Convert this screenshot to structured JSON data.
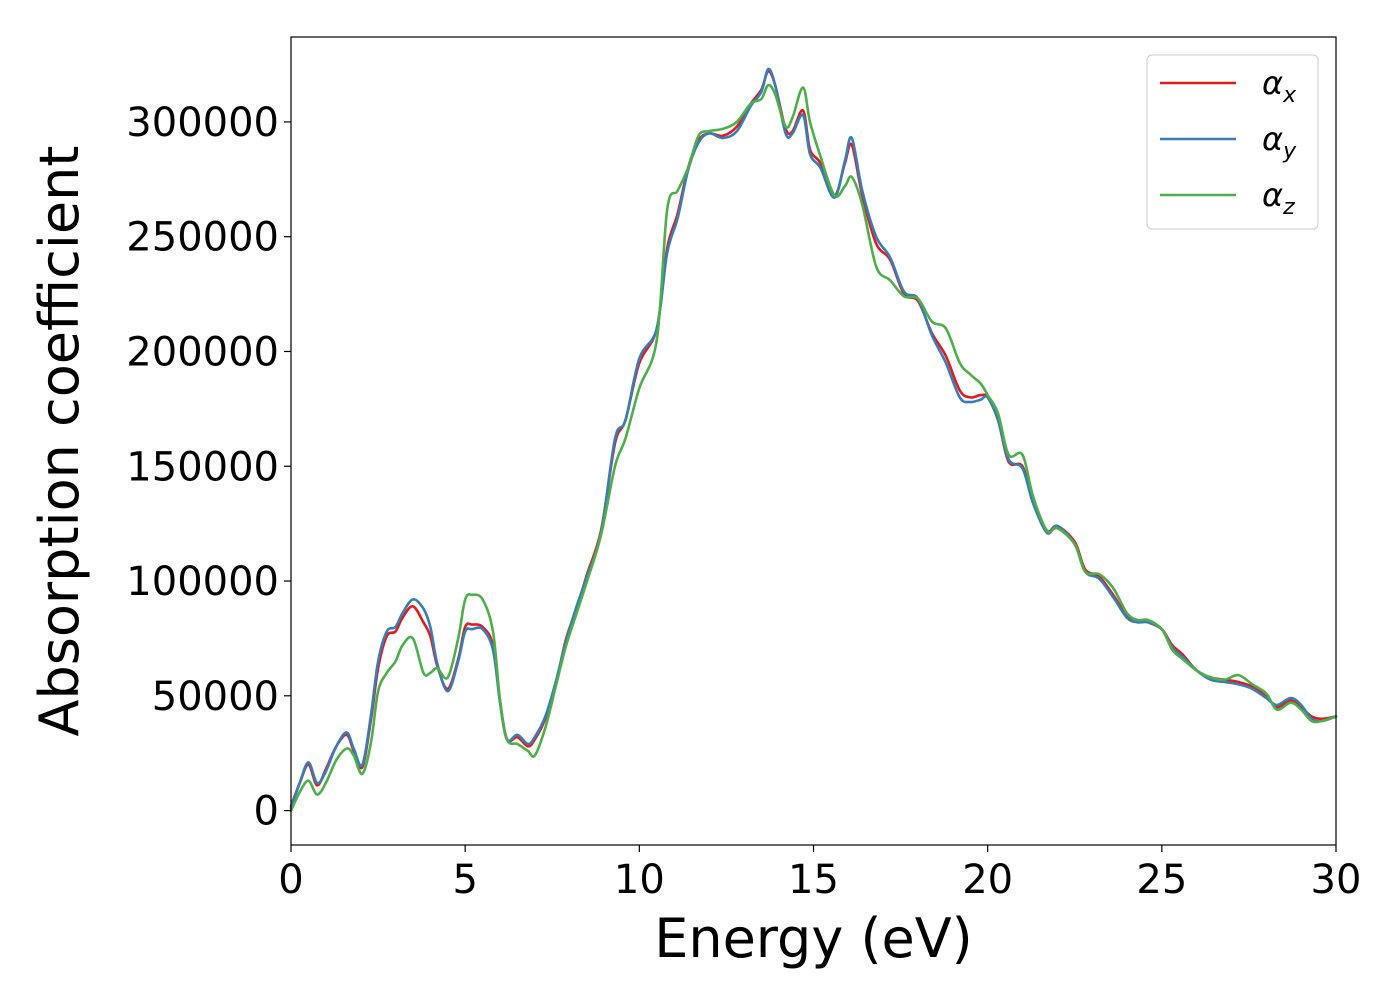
{
  "chart_data": {
    "type": "line",
    "title": "",
    "xlabel": "Energy (eV)",
    "ylabel": "Absorption coefficient",
    "xlim": [
      0,
      30
    ],
    "ylim": [
      -15000,
      337000
    ],
    "xticks": [
      0,
      5,
      10,
      15,
      20,
      25,
      30
    ],
    "yticks": [
      0,
      50000,
      100000,
      150000,
      200000,
      250000,
      300000
    ],
    "grid": false,
    "legend_position": "top-right",
    "colors": {
      "x": "#e41a1c",
      "y": "#377eb8",
      "z": "#4daf4a"
    },
    "series": [
      {
        "name": "αx",
        "symbol": "α",
        "subscript": "x",
        "color": "#e41a1c",
        "x": [
          0,
          0.25,
          0.5,
          0.75,
          1.0,
          1.3,
          1.6,
          1.8,
          2.05,
          2.3,
          2.5,
          2.75,
          3.0,
          3.2,
          3.5,
          3.8,
          4.0,
          4.2,
          4.5,
          4.8,
          5.0,
          5.2,
          5.5,
          5.8,
          6.0,
          6.2,
          6.5,
          6.8,
          7.0,
          7.3,
          7.6,
          7.9,
          8.2,
          8.5,
          8.9,
          9.3,
          9.6,
          10.0,
          10.5,
          10.8,
          11.1,
          11.4,
          11.7,
          12.0,
          12.4,
          12.8,
          13.2,
          13.5,
          13.7,
          13.9,
          14.2,
          14.4,
          14.7,
          14.9,
          15.2,
          15.6,
          15.9,
          16.1,
          16.4,
          16.8,
          17.2,
          17.6,
          18.0,
          18.4,
          18.8,
          19.2,
          19.5,
          19.8,
          20.0,
          20.3,
          20.6,
          21.0,
          21.3,
          21.7,
          22.0,
          22.5,
          22.8,
          23.2,
          23.6,
          24.0,
          24.3,
          24.6,
          25.0,
          25.3,
          25.6,
          26.0,
          26.4,
          26.8,
          27.2,
          27.6,
          28.0,
          28.3,
          28.7,
          29.0,
          29.3,
          29.6,
          30.0
        ],
        "y": [
          2000,
          12000,
          20000,
          11000,
          18000,
          28000,
          33000,
          26000,
          19000,
          40000,
          62000,
          76000,
          78000,
          84000,
          89000,
          82000,
          76000,
          63000,
          53000,
          66000,
          80000,
          81000,
          80000,
          72000,
          48000,
          31000,
          32000,
          28000,
          31000,
          40000,
          55000,
          75000,
          88000,
          103000,
          122000,
          160000,
          170000,
          195000,
          210000,
          245000,
          260000,
          280000,
          292000,
          295000,
          294000,
          298000,
          308000,
          314000,
          322000,
          316000,
          297000,
          296000,
          305000,
          288000,
          282000,
          268000,
          282000,
          290000,
          268000,
          247000,
          240000,
          225000,
          222000,
          208000,
          198000,
          183000,
          180000,
          181000,
          180000,
          170000,
          152000,
          150000,
          135000,
          122000,
          124000,
          117000,
          105000,
          102000,
          94000,
          85000,
          83000,
          82000,
          79000,
          72000,
          68000,
          61000,
          58000,
          57000,
          56000,
          54000,
          50000,
          45000,
          48000,
          45000,
          41000,
          40000,
          41000
        ]
      },
      {
        "name": "αy",
        "symbol": "α",
        "subscript": "y",
        "color": "#377eb8",
        "x": [
          0,
          0.25,
          0.5,
          0.75,
          1.0,
          1.3,
          1.6,
          1.8,
          2.05,
          2.3,
          2.5,
          2.75,
          3.0,
          3.2,
          3.5,
          3.8,
          4.0,
          4.2,
          4.5,
          4.8,
          5.0,
          5.2,
          5.5,
          5.8,
          6.0,
          6.2,
          6.5,
          6.8,
          7.0,
          7.3,
          7.6,
          7.9,
          8.2,
          8.5,
          8.9,
          9.3,
          9.6,
          10.0,
          10.5,
          10.8,
          11.1,
          11.4,
          11.7,
          12.0,
          12.4,
          12.8,
          13.2,
          13.5,
          13.7,
          13.9,
          14.2,
          14.4,
          14.7,
          14.9,
          15.2,
          15.6,
          15.9,
          16.1,
          16.4,
          16.8,
          17.2,
          17.6,
          18.0,
          18.4,
          18.8,
          19.2,
          19.5,
          19.8,
          20.0,
          20.3,
          20.6,
          21.0,
          21.3,
          21.7,
          22.0,
          22.5,
          22.8,
          23.2,
          23.6,
          24.0,
          24.3,
          24.6,
          25.0,
          25.3,
          25.6,
          26.0,
          26.4,
          26.8,
          27.2,
          27.6,
          28.0,
          28.3,
          28.7,
          29.0,
          29.3,
          29.6,
          30.0
        ],
        "y": [
          1000,
          12000,
          21000,
          12000,
          17000,
          28000,
          34000,
          27000,
          20000,
          42000,
          65000,
          78000,
          80000,
          86000,
          92000,
          88000,
          80000,
          64000,
          52000,
          65000,
          78000,
          79000,
          79000,
          70000,
          47000,
          31000,
          33000,
          29000,
          32000,
          41000,
          56000,
          74000,
          89000,
          102000,
          121000,
          162000,
          170000,
          197000,
          210000,
          243000,
          258000,
          279000,
          291000,
          295000,
          293000,
          296000,
          307000,
          313000,
          323000,
          316000,
          295000,
          295000,
          303000,
          286000,
          280000,
          267000,
          283000,
          293000,
          270000,
          250000,
          241000,
          226000,
          223000,
          207000,
          195000,
          180000,
          178000,
          179000,
          180000,
          170000,
          153000,
          149000,
          134000,
          121000,
          124000,
          116000,
          104000,
          101000,
          93000,
          84000,
          82000,
          82000,
          79000,
          71000,
          67000,
          61000,
          57000,
          56000,
          55000,
          53000,
          49000,
          46000,
          49000,
          46000,
          40000,
          39000,
          41000
        ]
      },
      {
        "name": "αz",
        "symbol": "α",
        "subscript": "z",
        "color": "#4daf4a",
        "x": [
          0,
          0.25,
          0.5,
          0.75,
          1.0,
          1.3,
          1.6,
          1.8,
          2.05,
          2.3,
          2.5,
          2.75,
          3.0,
          3.2,
          3.5,
          3.8,
          4.0,
          4.2,
          4.5,
          4.8,
          5.0,
          5.2,
          5.5,
          5.8,
          6.0,
          6.2,
          6.5,
          6.8,
          7.0,
          7.3,
          7.6,
          7.9,
          8.2,
          8.5,
          8.9,
          9.3,
          9.6,
          10.0,
          10.5,
          10.8,
          11.1,
          11.4,
          11.7,
          12.0,
          12.4,
          12.8,
          13.2,
          13.5,
          13.7,
          13.9,
          14.2,
          14.4,
          14.7,
          14.9,
          15.2,
          15.6,
          15.9,
          16.1,
          16.4,
          16.8,
          17.2,
          17.6,
          18.0,
          18.4,
          18.8,
          19.2,
          19.5,
          19.8,
          20.0,
          20.3,
          20.6,
          21.0,
          21.3,
          21.7,
          22.0,
          22.5,
          22.8,
          23.2,
          23.6,
          24.0,
          24.3,
          24.6,
          25.0,
          25.3,
          25.6,
          26.0,
          26.4,
          26.8,
          27.2,
          27.6,
          28.0,
          28.3,
          28.7,
          29.0,
          29.3,
          29.6,
          30.0
        ],
        "y": [
          0,
          8000,
          13000,
          7000,
          12000,
          22000,
          27000,
          24000,
          16000,
          30000,
          52000,
          60000,
          65000,
          72000,
          75000,
          60000,
          60000,
          62000,
          58000,
          75000,
          92000,
          94000,
          92000,
          78000,
          48000,
          31000,
          29000,
          26000,
          24000,
          36000,
          54000,
          72000,
          86000,
          100000,
          120000,
          150000,
          162000,
          184000,
          205000,
          262000,
          270000,
          280000,
          294000,
          296000,
          297000,
          300000,
          308000,
          310000,
          316000,
          312000,
          298000,
          302000,
          315000,
          300000,
          285000,
          268000,
          272000,
          276000,
          264000,
          237000,
          231000,
          224000,
          223000,
          213000,
          210000,
          195000,
          190000,
          186000,
          181000,
          173000,
          155000,
          155000,
          137000,
          122000,
          123000,
          116000,
          104000,
          103000,
          97000,
          86000,
          83000,
          83000,
          79000,
          70000,
          66000,
          61000,
          58000,
          57000,
          59000,
          55000,
          51000,
          44000,
          47000,
          44000,
          39000,
          39000,
          41000
        ]
      }
    ]
  }
}
